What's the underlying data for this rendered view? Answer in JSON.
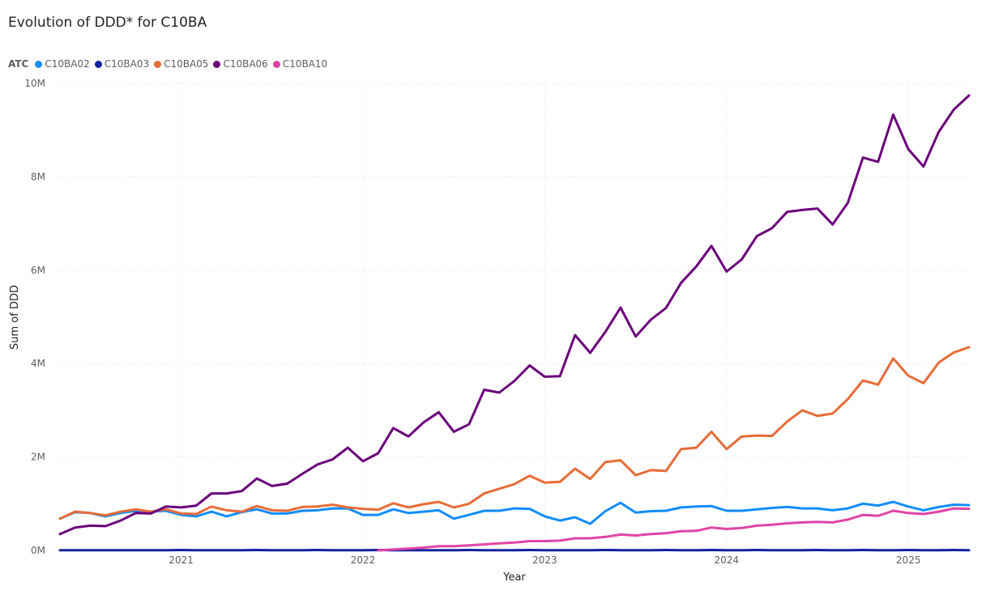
{
  "title": "Evolution of DDD* for C10BA",
  "chart_data": {
    "type": "line",
    "title": "Evolution of DDD* for C10BA",
    "xlabel": "Year",
    "ylabel": "Sum of DDD",
    "legend_title": "ATC",
    "legend_position": "top-left",
    "grid": true,
    "x_ticks": [
      "2021",
      "2022",
      "2023",
      "2024",
      "2025"
    ],
    "y_ticks": [
      "0M",
      "2M",
      "4M",
      "6M",
      "8M",
      "10M"
    ],
    "ylim": [
      0,
      10000000
    ],
    "xlim": [
      "2020-05",
      "2025-05"
    ],
    "x": [
      "2020-05",
      "2020-06",
      "2020-07",
      "2020-08",
      "2020-09",
      "2020-10",
      "2020-11",
      "2020-12",
      "2021-01",
      "2021-02",
      "2021-03",
      "2021-04",
      "2021-05",
      "2021-06",
      "2021-07",
      "2021-08",
      "2021-09",
      "2021-10",
      "2021-11",
      "2021-12",
      "2022-01",
      "2022-02",
      "2022-03",
      "2022-04",
      "2022-05",
      "2022-06",
      "2022-07",
      "2022-08",
      "2022-09",
      "2022-10",
      "2022-11",
      "2022-12",
      "2023-01",
      "2023-02",
      "2023-03",
      "2023-04",
      "2023-05",
      "2023-06",
      "2023-07",
      "2023-08",
      "2023-09",
      "2023-10",
      "2023-11",
      "2023-12",
      "2024-01",
      "2024-02",
      "2024-03",
      "2024-04",
      "2024-05",
      "2024-06",
      "2024-07",
      "2024-08",
      "2024-09",
      "2024-10",
      "2024-11",
      "2024-12",
      "2025-01",
      "2025-02",
      "2025-03",
      "2025-04",
      "2025-05"
    ],
    "series": [
      {
        "name": "C10BA02",
        "color": "#118DFF",
        "values": [
          680000,
          820000,
          800000,
          730000,
          800000,
          850000,
          830000,
          850000,
          760000,
          730000,
          830000,
          730000,
          820000,
          880000,
          790000,
          790000,
          850000,
          860000,
          900000,
          900000,
          760000,
          760000,
          880000,
          800000,
          830000,
          860000,
          680000,
          760000,
          850000,
          850000,
          900000,
          890000,
          730000,
          640000,
          710000,
          570000,
          840000,
          1020000,
          810000,
          840000,
          850000,
          920000,
          940000,
          950000,
          850000,
          850000,
          880000,
          910000,
          930000,
          900000,
          900000,
          860000,
          900000,
          1000000,
          960000,
          1040000,
          940000,
          860000,
          930000,
          980000,
          970000
        ]
      },
      {
        "name": "C10BA03",
        "color": "#12239E",
        "values": [
          5000,
          5000,
          5000,
          5000,
          5000,
          5000,
          5000,
          5000,
          8000,
          5000,
          5000,
          5000,
          5000,
          8000,
          5000,
          5000,
          5000,
          8000,
          5000,
          5000,
          5000,
          8000,
          5000,
          5000,
          5000,
          5000,
          5000,
          8000,
          5000,
          5000,
          5000,
          8000,
          5000,
          5000,
          5000,
          5000,
          8000,
          5000,
          5000,
          5000,
          8000,
          5000,
          5000,
          8000,
          5000,
          5000,
          8000,
          5000,
          5000,
          5000,
          8000,
          5000,
          5000,
          8000,
          5000,
          5000,
          8000,
          5000,
          5000,
          8000,
          5000
        ]
      },
      {
        "name": "C10BA05",
        "color": "#E66C37",
        "values": [
          680000,
          830000,
          800000,
          750000,
          830000,
          880000,
          830000,
          880000,
          790000,
          780000,
          940000,
          860000,
          830000,
          950000,
          860000,
          850000,
          930000,
          940000,
          980000,
          920000,
          890000,
          870000,
          1010000,
          920000,
          990000,
          1040000,
          920000,
          1000000,
          1220000,
          1320000,
          1420000,
          1600000,
          1450000,
          1470000,
          1750000,
          1530000,
          1890000,
          1930000,
          1610000,
          1720000,
          1700000,
          2170000,
          2200000,
          2540000,
          2170000,
          2440000,
          2460000,
          2450000,
          2760000,
          3000000,
          2880000,
          2930000,
          3240000,
          3640000,
          3550000,
          4110000,
          3740000,
          3580000,
          4020000,
          4240000,
          4350000
        ]
      },
      {
        "name": "C10BA06",
        "color": "#6B007B",
        "values": [
          350000,
          490000,
          530000,
          520000,
          640000,
          800000,
          790000,
          940000,
          920000,
          960000,
          1220000,
          1220000,
          1270000,
          1540000,
          1380000,
          1430000,
          1640000,
          1840000,
          1950000,
          2200000,
          1910000,
          2080000,
          2620000,
          2440000,
          2740000,
          2960000,
          2540000,
          2700000,
          3440000,
          3380000,
          3630000,
          3960000,
          3720000,
          3730000,
          4610000,
          4230000,
          4680000,
          5200000,
          4580000,
          4940000,
          5190000,
          5730000,
          6080000,
          6520000,
          5970000,
          6230000,
          6730000,
          6900000,
          7250000,
          7290000,
          7320000,
          6980000,
          7440000,
          8410000,
          8320000,
          9330000,
          8590000,
          8220000,
          8960000,
          9440000,
          9740000
        ]
      },
      {
        "name": "C10BA10",
        "color": "#E044A7",
        "values": [
          null,
          null,
          null,
          null,
          null,
          null,
          null,
          null,
          null,
          null,
          null,
          null,
          null,
          null,
          null,
          null,
          null,
          null,
          null,
          null,
          null,
          0,
          20000,
          40000,
          60000,
          90000,
          90000,
          110000,
          130000,
          150000,
          170000,
          200000,
          200000,
          210000,
          260000,
          260000,
          290000,
          340000,
          320000,
          350000,
          370000,
          410000,
          420000,
          490000,
          460000,
          480000,
          530000,
          550000,
          580000,
          600000,
          610000,
          600000,
          660000,
          760000,
          740000,
          850000,
          800000,
          780000,
          830000,
          900000,
          890000
        ]
      }
    ]
  }
}
